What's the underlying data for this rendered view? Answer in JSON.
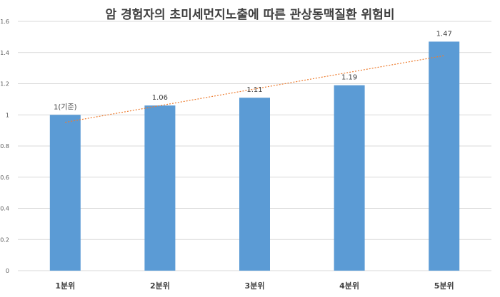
{
  "chart_data": {
    "type": "bar",
    "title": "암 경험자의 초미세먼지노출에 따른 관상동맥질환 위험비",
    "categories": [
      "1분위",
      "2분위",
      "3분위",
      "4분위",
      "5분위"
    ],
    "values": [
      1,
      1.06,
      1.11,
      1.19,
      1.47
    ],
    "data_labels": [
      "1(기준)",
      "1.06",
      "1.11",
      "1.19",
      "1.47"
    ],
    "ylim": [
      0,
      1.6
    ],
    "yticks": [
      "0",
      "0.2",
      "0.4",
      "0.6",
      "0.8",
      "1",
      "1.2",
      "1.4",
      "1.6"
    ],
    "trendline": "linear",
    "grid": true,
    "colors": {
      "bar": "#5b9bd5",
      "trend": "#ed7d31",
      "grid": "#d9d9d9"
    }
  }
}
